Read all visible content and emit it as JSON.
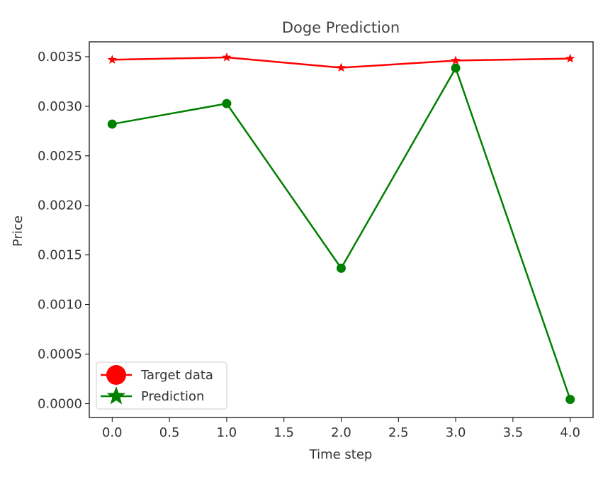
{
  "chart_data": {
    "type": "line",
    "title": "Doge Prediction",
    "xlabel": "Time step",
    "ylabel": "Price",
    "xlim": [
      -0.2,
      4.2
    ],
    "ylim": [
      -0.00014,
      0.00365
    ],
    "xticks": [
      0.0,
      0.5,
      1.0,
      1.5,
      2.0,
      2.5,
      3.0,
      3.5,
      4.0
    ],
    "xtick_labels": [
      "0.0",
      "0.5",
      "1.0",
      "1.5",
      "2.0",
      "2.5",
      "3.0",
      "3.5",
      "4.0"
    ],
    "yticks": [
      0.0,
      0.0005,
      0.001,
      0.0015,
      0.002,
      0.0025,
      0.003,
      0.0035
    ],
    "ytick_labels": [
      "0.0000",
      "0.0005",
      "0.0010",
      "0.0015",
      "0.0020",
      "0.0025",
      "0.0030",
      "0.0035"
    ],
    "grid": false,
    "legend_position": "lower-left",
    "x": [
      0,
      1,
      2,
      3,
      4
    ],
    "series": [
      {
        "name": "Target data",
        "color": "#ff0000",
        "marker": "star",
        "legend_marker": "circle",
        "values": [
          0.003469,
          0.003493,
          0.003389,
          0.003461,
          0.003481
        ]
      },
      {
        "name": "Prediction",
        "color": "#008000",
        "marker": "circle",
        "legend_marker": "star",
        "values": [
          0.00282,
          0.003027,
          0.001366,
          0.003385,
          4.25e-05
        ]
      }
    ]
  }
}
